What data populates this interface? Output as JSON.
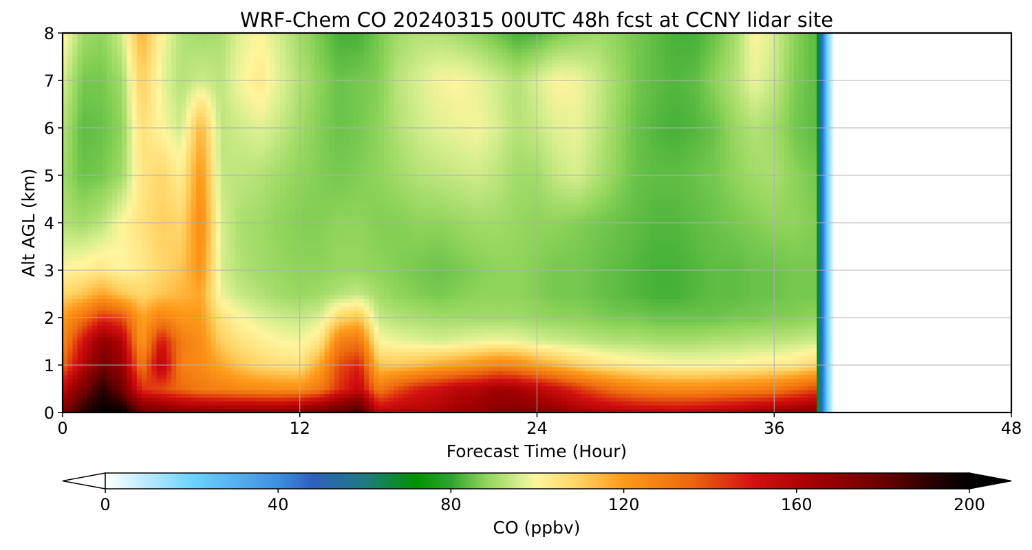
{
  "chart_data": {
    "type": "heatmap",
    "title": "WRF-Chem CO  20240315 00UTC 48h fcst at CCNY lidar site",
    "xlabel": "Forecast Time (Hour)",
    "ylabel": "Alt AGL (km)",
    "xlim": [
      0,
      48
    ],
    "ylim": [
      0,
      8
    ],
    "xticks": [
      0,
      12,
      24,
      36,
      48
    ],
    "xtick_labels": [
      "0",
      "12",
      "24",
      "36",
      "48"
    ],
    "yticks": [
      0,
      1,
      2,
      3,
      4,
      5,
      6,
      7,
      8
    ],
    "ytick_labels": [
      "0",
      "1",
      "2",
      "3",
      "4",
      "5",
      "6",
      "7",
      "8"
    ],
    "grid": true,
    "data_available_until_hour": 38.5,
    "z_units": "ppbv",
    "x": [
      0,
      1,
      2,
      3,
      4,
      5,
      6,
      7,
      8,
      9,
      10,
      11,
      12,
      13,
      14,
      15,
      16,
      17,
      18,
      19,
      20,
      21,
      22,
      23,
      24,
      25,
      26,
      27,
      28,
      29,
      30,
      31,
      32,
      33,
      34,
      35,
      36,
      37,
      38
    ],
    "y": [
      0,
      0.5,
      1,
      1.5,
      2,
      2.5,
      3,
      4,
      5,
      6,
      7,
      8
    ],
    "z": [
      [
        175,
        192,
        200,
        200,
        182,
        178,
        172,
        172,
        172,
        172,
        172,
        172,
        175,
        180,
        184,
        190,
        158,
        160,
        160,
        162,
        165,
        168,
        172,
        174,
        172,
        170,
        165,
        162,
        160,
        158,
        157,
        156,
        158,
        160,
        162,
        165,
        168,
        170,
        172
      ],
      [
        155,
        175,
        192,
        178,
        145,
        140,
        135,
        130,
        128,
        126,
        125,
        124,
        124,
        130,
        145,
        155,
        130,
        140,
        148,
        152,
        158,
        160,
        165,
        163,
        158,
        152,
        145,
        138,
        132,
        128,
        126,
        125,
        125,
        126,
        127,
        128,
        130,
        135,
        140
      ],
      [
        135,
        158,
        178,
        168,
        130,
        160,
        128,
        125,
        118,
        112,
        108,
        106,
        105,
        118,
        140,
        148,
        112,
        112,
        114,
        118,
        120,
        124,
        128,
        126,
        120,
        115,
        110,
        106,
        104,
        102,
        101,
        100,
        100,
        100,
        101,
        102,
        103,
        104,
        108
      ],
      [
        125,
        150,
        170,
        160,
        120,
        150,
        130,
        124,
        110,
        105,
        102,
        100,
        99,
        104,
        128,
        132,
        100,
        98,
        97,
        96,
        97,
        98,
        99,
        98,
        96,
        95,
        94,
        93,
        92,
        92,
        91,
        91,
        91,
        92,
        92,
        93,
        93,
        94,
        95
      ],
      [
        120,
        132,
        145,
        140,
        118,
        128,
        122,
        120,
        105,
        100,
        97,
        95,
        94,
        96,
        108,
        112,
        94,
        92,
        91,
        90,
        90,
        90,
        90,
        90,
        89,
        88,
        88,
        87,
        86,
        86,
        85,
        85,
        85,
        85,
        86,
        86,
        87,
        87,
        88
      ],
      [
        108,
        112,
        118,
        112,
        108,
        112,
        115,
        118,
        98,
        94,
        92,
        90,
        89,
        90,
        92,
        94,
        90,
        88,
        87,
        86,
        87,
        88,
        88,
        88,
        87,
        86,
        86,
        85,
        84,
        83,
        82,
        82,
        83,
        84,
        84,
        85,
        85,
        86,
        86
      ],
      [
        100,
        102,
        104,
        100,
        103,
        108,
        112,
        122,
        96,
        92,
        90,
        89,
        88,
        88,
        89,
        89,
        88,
        87,
        86,
        85,
        86,
        87,
        88,
        88,
        87,
        86,
        86,
        85,
        84,
        83,
        82,
        82,
        83,
        84,
        84,
        85,
        85,
        86,
        86
      ],
      [
        92,
        90,
        93,
        100,
        105,
        110,
        108,
        125,
        96,
        91,
        90,
        88,
        87,
        87,
        88,
        88,
        87,
        87,
        88,
        88,
        89,
        90,
        90,
        89,
        88,
        88,
        87,
        86,
        85,
        84,
        83,
        83,
        84,
        85,
        86,
        87,
        88,
        88,
        87
      ],
      [
        90,
        85,
        86,
        90,
        104,
        108,
        102,
        122,
        94,
        93,
        92,
        90,
        88,
        87,
        86,
        87,
        88,
        90,
        92,
        93,
        94,
        95,
        93,
        90,
        90,
        94,
        96,
        92,
        88,
        85,
        84,
        84,
        85,
        86,
        88,
        90,
        91,
        88,
        86
      ],
      [
        92,
        84,
        85,
        88,
        106,
        100,
        95,
        115,
        93,
        95,
        97,
        94,
        90,
        87,
        85,
        86,
        88,
        92,
        95,
        97,
        98,
        99,
        96,
        92,
        94,
        97,
        98,
        94,
        89,
        85,
        83,
        82,
        83,
        85,
        89,
        92,
        90,
        86,
        84
      ],
      [
        96,
        86,
        86,
        90,
        110,
        98,
        92,
        95,
        93,
        99,
        103,
        97,
        92,
        88,
        85,
        86,
        87,
        93,
        96,
        99,
        100,
        98,
        95,
        92,
        96,
        100,
        99,
        95,
        90,
        86,
        84,
        83,
        84,
        88,
        92,
        98,
        94,
        87,
        84
      ],
      [
        102,
        90,
        88,
        95,
        116,
        100,
        92,
        90,
        91,
        97,
        100,
        95,
        90,
        86,
        82,
        82,
        86,
        90,
        92,
        92,
        90,
        88,
        85,
        82,
        83,
        86,
        88,
        90,
        88,
        86,
        84,
        82,
        82,
        85,
        90,
        100,
        96,
        88,
        84
      ]
    ],
    "colorbar": {
      "label": "CO  (ppbv)",
      "min": 0,
      "max": 200,
      "extend": "both",
      "ticks": [
        0,
        40,
        80,
        120,
        160,
        200
      ],
      "tick_labels": [
        "0",
        "40",
        "80",
        "120",
        "160",
        "200"
      ],
      "stops": [
        {
          "v": 0,
          "color": "#ffffff"
        },
        {
          "v": 20,
          "color": "#6dd3ff"
        },
        {
          "v": 40,
          "color": "#3e8fe0"
        },
        {
          "v": 48,
          "color": "#2e60c0"
        },
        {
          "v": 60,
          "color": "#1e7a80"
        },
        {
          "v": 72,
          "color": "#009300"
        },
        {
          "v": 80,
          "color": "#2ea52e"
        },
        {
          "v": 88,
          "color": "#8fd45a"
        },
        {
          "v": 96,
          "color": "#d8ef90"
        },
        {
          "v": 100,
          "color": "#fff59d"
        },
        {
          "v": 110,
          "color": "#ffd060"
        },
        {
          "v": 120,
          "color": "#ff9a1a"
        },
        {
          "v": 135,
          "color": "#ed6a0f"
        },
        {
          "v": 150,
          "color": "#d31010"
        },
        {
          "v": 165,
          "color": "#a00000"
        },
        {
          "v": 180,
          "color": "#6b0000"
        },
        {
          "v": 190,
          "color": "#300000"
        },
        {
          "v": 200,
          "color": "#000000"
        }
      ]
    }
  }
}
